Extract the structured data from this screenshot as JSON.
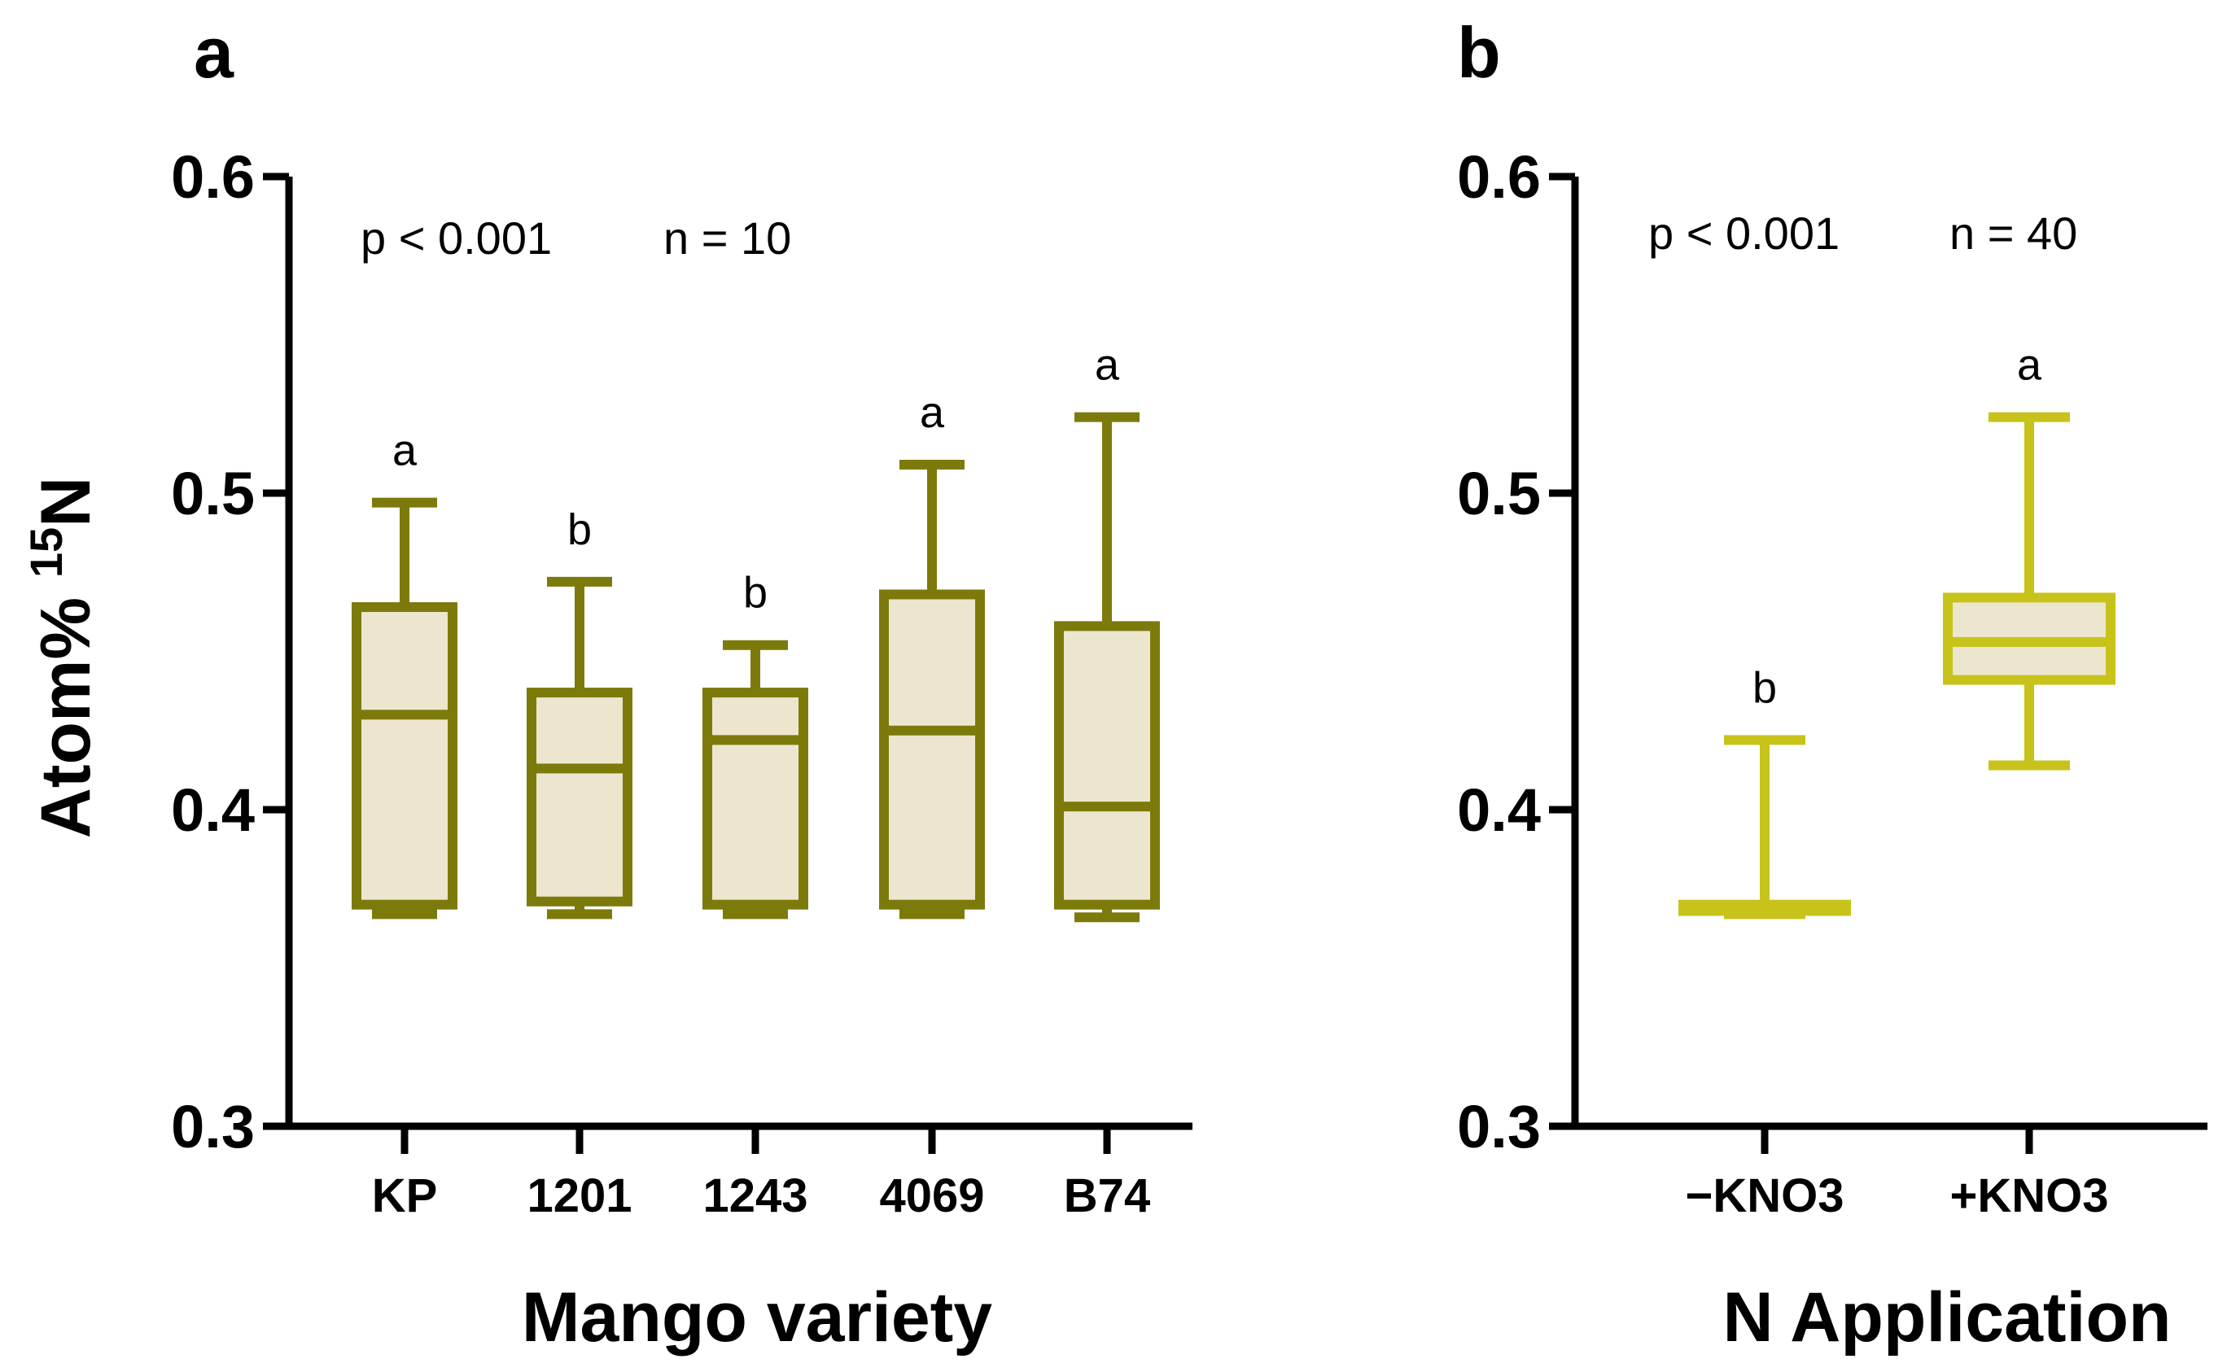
{
  "chart_data": [
    {
      "type": "box",
      "panel_label": "a",
      "title": "",
      "xlabel": "Mango variety",
      "ylabel": "Atom% ",
      "ylabel_superscript": "15",
      "ylabel_suffix": "N",
      "ylim": [
        0.3,
        0.6
      ],
      "yticks": [
        "0.3",
        "0.4",
        "0.5",
        "0.6"
      ],
      "annotations": {
        "p_value": "p < 0.001",
        "n": "n = 10"
      },
      "color": "#7d7a0c",
      "fill": "#ede6cf",
      "categories": [
        "KP",
        "1201",
        "1243",
        "4069",
        "B74"
      ],
      "boxes": [
        {
          "min": 0.367,
          "q1": 0.37,
          "median": 0.43,
          "q3": 0.464,
          "max": 0.497,
          "letter": "a"
        },
        {
          "min": 0.367,
          "q1": 0.371,
          "median": 0.413,
          "q3": 0.437,
          "max": 0.472,
          "letter": "b"
        },
        {
          "min": 0.367,
          "q1": 0.37,
          "median": 0.422,
          "q3": 0.437,
          "max": 0.452,
          "letter": "b"
        },
        {
          "min": 0.367,
          "q1": 0.37,
          "median": 0.425,
          "q3": 0.468,
          "max": 0.509,
          "letter": "a"
        },
        {
          "min": 0.366,
          "q1": 0.37,
          "median": 0.401,
          "q3": 0.458,
          "max": 0.524,
          "letter": "a"
        }
      ]
    },
    {
      "type": "box",
      "panel_label": "b",
      "title": "",
      "xlabel": "N Application",
      "ylabel": "",
      "ylim": [
        0.3,
        0.6
      ],
      "yticks": [
        "0.3",
        "0.4",
        "0.5",
        "0.6"
      ],
      "annotations": {
        "p_value": "p < 0.001",
        "n": "n = 40"
      },
      "color": "#c7c31a",
      "fill": "#ede6cf",
      "categories": [
        "−KNO3",
        "+KNO3"
      ],
      "boxes": [
        {
          "min": 0.367,
          "q1": 0.368,
          "median": 0.369,
          "q3": 0.37,
          "max": 0.422,
          "letter": "b"
        },
        {
          "min": 0.414,
          "q1": 0.441,
          "median": 0.453,
          "q3": 0.467,
          "max": 0.524,
          "letter": "a"
        }
      ]
    }
  ]
}
